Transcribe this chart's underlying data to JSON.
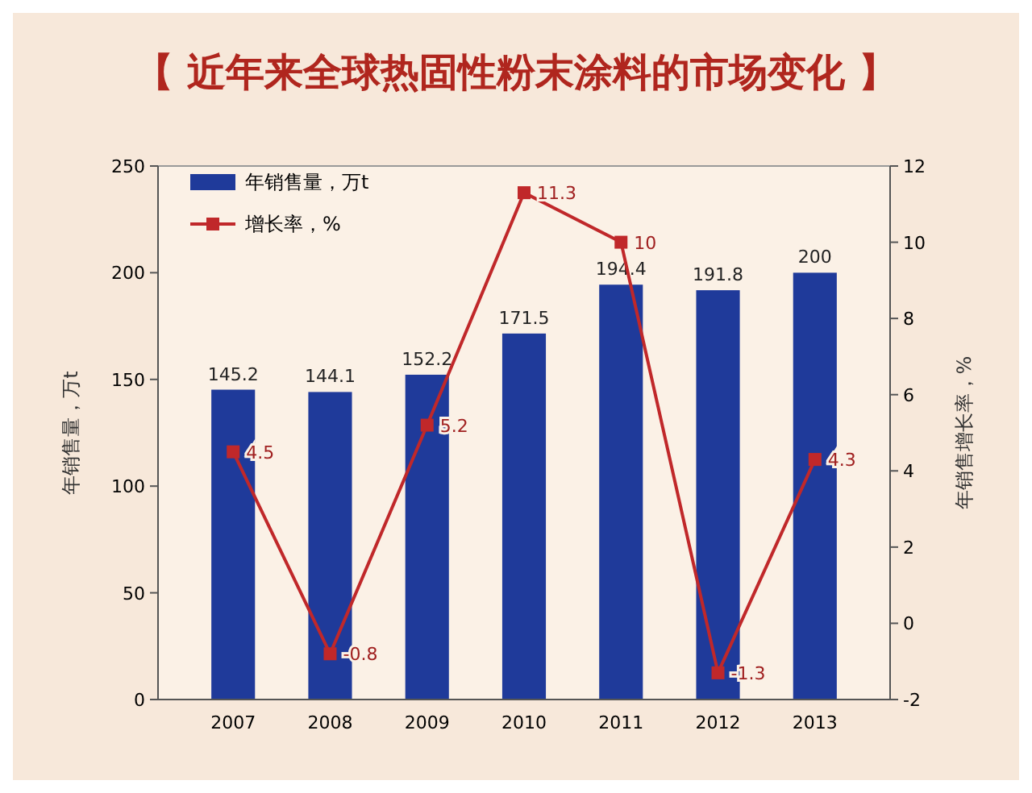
{
  "chart_data": {
    "type": "bar",
    "title": "【 近年来全球热固性粉末涂料的市场变化 】",
    "ylabel": "年销售量，万t",
    "y2label": "年销售增长率，%",
    "categories": [
      "2007",
      "2008",
      "2009",
      "2010",
      "2011",
      "2012",
      "2013"
    ],
    "series": [
      {
        "name": "年销售量，万t",
        "color": "#1f3a9a",
        "values": [
          145.2,
          144.1,
          152.2,
          171.5,
          194.4,
          191.8,
          200
        ]
      },
      {
        "name": "增长率，%",
        "type": "line",
        "axis": "y2",
        "color": "#c0282a",
        "marker": "square",
        "values": [
          4.5,
          -0.8,
          5.2,
          11.3,
          10,
          -1.3,
          4.3
        ]
      }
    ],
    "ylim": [
      0,
      250
    ],
    "yticks": [
      0,
      50,
      100,
      150,
      200,
      250
    ],
    "y2lim": [
      -2,
      12
    ],
    "y2ticks": [
      -2,
      0,
      2,
      4,
      6,
      8,
      10,
      12
    ],
    "data_labels": true,
    "legend": "top left",
    "grid": false
  }
}
